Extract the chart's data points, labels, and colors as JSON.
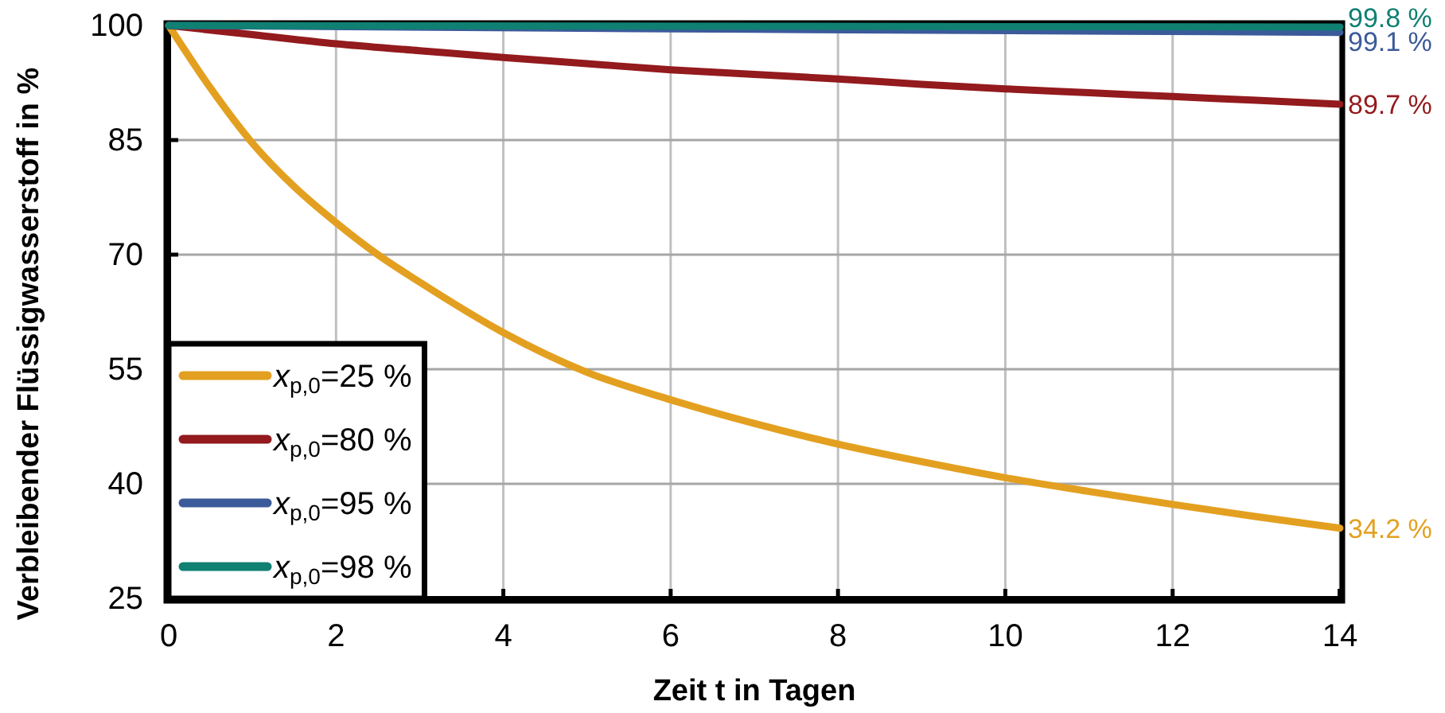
{
  "chart_data": {
    "type": "line",
    "xlabel": "Zeit t in Tagen",
    "ylabel": "Verbleibender Flüssigwasserstoff in %",
    "xlim": [
      0,
      14
    ],
    "xticks": [
      0,
      2,
      4,
      6,
      8,
      10,
      12,
      14
    ],
    "ylim": [
      25,
      100
    ],
    "yticks": [
      25,
      40,
      55,
      70,
      85,
      100
    ],
    "grid": true,
    "legend": "bottom left",
    "line_style": "solid",
    "marker": "none",
    "series": [
      {
        "name": "x$_{p,0}$=25 %",
        "color": "#e3a020",
        "x": [
          0,
          0.5,
          1,
          1.5,
          2,
          2.5,
          3,
          4,
          5,
          6,
          7,
          8,
          9,
          10,
          11,
          12,
          13,
          14
        ],
        "values": [
          100,
          91.8,
          84.6,
          78.9,
          74.2,
          70,
          66.4,
          59.8,
          54.6,
          51,
          47.9,
          45.2,
          42.9,
          40.8,
          39,
          37.3,
          35.7,
          34.2
        ],
        "value_labels": [
          null,
          null,
          null,
          null,
          null,
          null,
          null,
          null,
          null,
          null,
          null,
          null,
          null,
          null,
          null,
          null,
          null,
          "34.2 %"
        ]
      },
      {
        "name": "x$_{p,0}$=80 %",
        "color": "#931a1d",
        "x": [
          0,
          1,
          2,
          3,
          4,
          5,
          6,
          7,
          8,
          9,
          10,
          11,
          12,
          13,
          14
        ],
        "values": [
          100,
          98.8,
          97.6,
          96.7,
          95.8,
          95,
          94.2,
          93.6,
          93,
          92.3,
          91.7,
          91.2,
          90.7,
          90.2,
          89.7
        ],
        "value_labels": [
          null,
          null,
          null,
          null,
          null,
          null,
          null,
          null,
          null,
          null,
          null,
          null,
          null,
          null,
          "89.7 %"
        ]
      },
      {
        "name": "x$_{p,0}$=95 %",
        "color": "#3b5a9a",
        "x": [
          0,
          7,
          14
        ],
        "values": [
          100,
          99.5,
          99.1
        ],
        "value_labels": [
          null,
          null,
          "99.1 %"
        ]
      },
      {
        "name": "x$_{p,0}$=98 %",
        "color": "#0f8072",
        "x": [
          0,
          7,
          14
        ],
        "values": [
          100,
          99.9,
          99.8
        ],
        "value_labels": [
          null,
          null,
          "99.8 %"
        ]
      }
    ]
  }
}
